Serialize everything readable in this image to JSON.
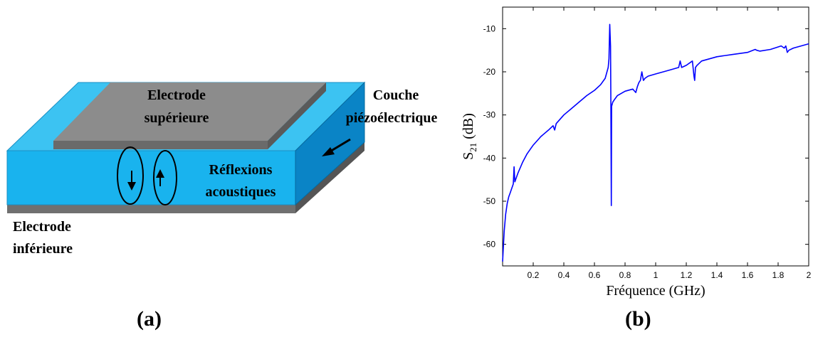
{
  "diagram": {
    "top_electrode_label_line1": "Electrode",
    "top_electrode_label_line2": "supérieure",
    "piezo_label_line1": "Couche",
    "piezo_label_line2": "piézoélectrique",
    "reflection_label_line1": "Réflexions",
    "reflection_label_line2": "acoustiques",
    "bottom_electrode_label_line1": "Electrode",
    "bottom_electrode_label_line2": "inférieure",
    "colors": {
      "piezo_front": "#19b3ee",
      "piezo_top": "#3cc3f2",
      "piezo_side": "#0a84c6",
      "electrode_top": "#8c8c8c",
      "electrode_edge": "#6a6a6a",
      "bottom_electrode": "#707070"
    }
  },
  "captions": {
    "a": "(a)",
    "b": "(b)"
  },
  "chart_data": {
    "type": "line",
    "xlabel": "Fréquence (GHz)",
    "ylabel_main": "S",
    "ylabel_sub": "21",
    "ylabel_unit": " (dB)",
    "xlim": [
      0,
      2
    ],
    "ylim": [
      -65,
      -5
    ],
    "xticks": [
      0.2,
      0.4,
      0.6,
      0.8,
      1,
      1.2,
      1.4,
      1.6,
      1.8,
      2
    ],
    "xtick_labels": [
      "0.2",
      "0.4",
      "0.6",
      "0.8",
      "1",
      "1.2",
      "1.4",
      "1.6",
      "1.8",
      "2"
    ],
    "yticks": [
      -60,
      -50,
      -40,
      -30,
      -20,
      -10
    ],
    "ytick_labels": [
      "-60",
      "-50",
      "-40",
      "-30",
      "-20",
      "-10"
    ],
    "grid": false,
    "line_color": "#0000ff",
    "series": [
      {
        "x": [
          0.0,
          0.01,
          0.02,
          0.03,
          0.04,
          0.05,
          0.06,
          0.07,
          0.075,
          0.08,
          0.1,
          0.13,
          0.16,
          0.2,
          0.25,
          0.3,
          0.33,
          0.34,
          0.35,
          0.4,
          0.45,
          0.5,
          0.55,
          0.6,
          0.64,
          0.67,
          0.69,
          0.695,
          0.7,
          0.705,
          0.707,
          0.71,
          0.712,
          0.72,
          0.73,
          0.75,
          0.8,
          0.85,
          0.87,
          0.88,
          0.89,
          0.9,
          0.91,
          0.92,
          0.93,
          0.95,
          1.0,
          1.05,
          1.1,
          1.15,
          1.16,
          1.17,
          1.2,
          1.24,
          1.25,
          1.255,
          1.26,
          1.27,
          1.3,
          1.4,
          1.5,
          1.6,
          1.65,
          1.66,
          1.68,
          1.75,
          1.82,
          1.84,
          1.85,
          1.86,
          1.87,
          1.9,
          1.95,
          2.0
        ],
        "y": [
          -64,
          -57,
          -53,
          -50.5,
          -49,
          -48,
          -47,
          -46,
          -42,
          -45.5,
          -43.5,
          -41,
          -39,
          -37,
          -35,
          -33.5,
          -32.5,
          -33.5,
          -32,
          -30,
          -28.5,
          -27,
          -25.5,
          -24.3,
          -23,
          -21.5,
          -19,
          -17,
          -9,
          -14,
          -25,
          -51,
          -28,
          -27,
          -26.5,
          -25.5,
          -24.5,
          -24,
          -24.8,
          -23.5,
          -22.5,
          -22,
          -20,
          -22,
          -21.5,
          -21,
          -20.5,
          -20,
          -19.5,
          -19,
          -17.5,
          -19,
          -18.5,
          -17.5,
          -21,
          -22,
          -19,
          -18.5,
          -17.5,
          -16.5,
          -16,
          -15.5,
          -14.8,
          -15,
          -15.2,
          -14.8,
          -14,
          -14.5,
          -14,
          -15.5,
          -15,
          -14.5,
          -14,
          -13.5
        ]
      }
    ]
  }
}
